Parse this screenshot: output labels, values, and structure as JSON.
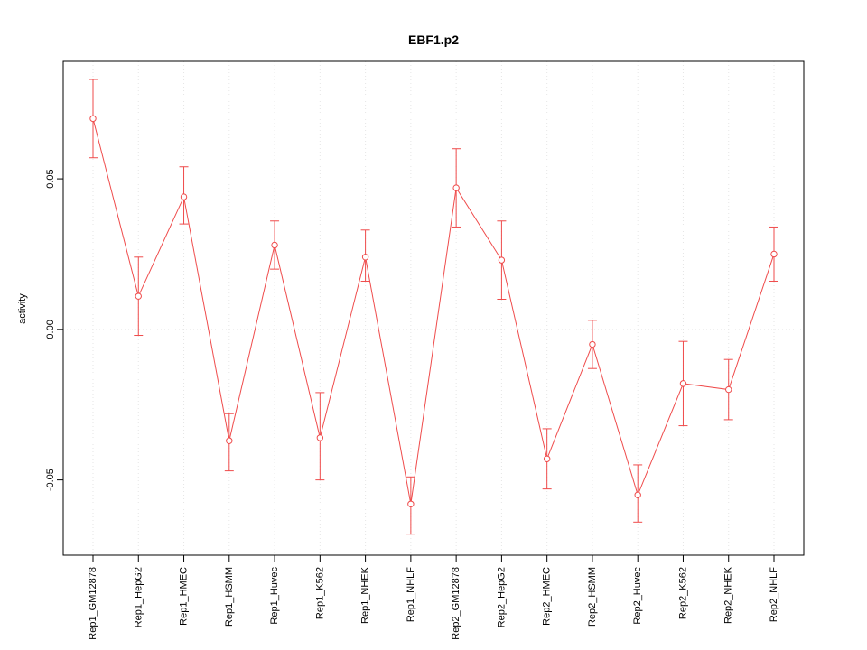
{
  "chart_data": {
    "type": "line",
    "title": "EBF1.p2",
    "xlabel": "",
    "ylabel": "activity",
    "categories": [
      "Rep1_GM12878",
      "Rep1_HepG2",
      "Rep1_HMEC",
      "Rep1_HSMM",
      "Rep1_Huvec",
      "Rep1_K562",
      "Rep1_NHEK",
      "Rep1_NHLF",
      "Rep2_GM12878",
      "Rep2_HepG2",
      "Rep2_HMEC",
      "Rep2_HSMM",
      "Rep2_Huvec",
      "Rep2_K562",
      "Rep2_NHEK",
      "Rep2_NHLF"
    ],
    "series": [
      {
        "name": "activity",
        "values": [
          0.07,
          0.011,
          0.044,
          -0.037,
          0.028,
          -0.036,
          0.024,
          -0.058,
          0.047,
          0.023,
          -0.043,
          -0.005,
          -0.055,
          -0.018,
          -0.02,
          0.025
        ],
        "upper": [
          0.083,
          0.024,
          0.054,
          -0.028,
          0.036,
          -0.021,
          0.033,
          -0.049,
          0.06,
          0.036,
          -0.033,
          0.003,
          -0.045,
          -0.004,
          -0.01,
          0.034
        ],
        "lower": [
          0.057,
          -0.002,
          0.035,
          -0.047,
          0.02,
          -0.05,
          0.016,
          -0.068,
          0.034,
          0.01,
          -0.053,
          -0.013,
          -0.064,
          -0.032,
          -0.03,
          0.016
        ]
      }
    ],
    "ylim": [
      -0.075,
      0.089
    ],
    "ytick_values": [
      -0.05,
      0,
      0.05
    ],
    "ytick_labels": [
      "-0.05",
      "0.00",
      "0.05"
    ],
    "grid": true,
    "hgrid_values": [
      0
    ],
    "legend": false,
    "marker": "open-circle",
    "series_color": "#ef4b4b",
    "grid_color": "#e6e6e6",
    "axis_color": "#000000"
  }
}
